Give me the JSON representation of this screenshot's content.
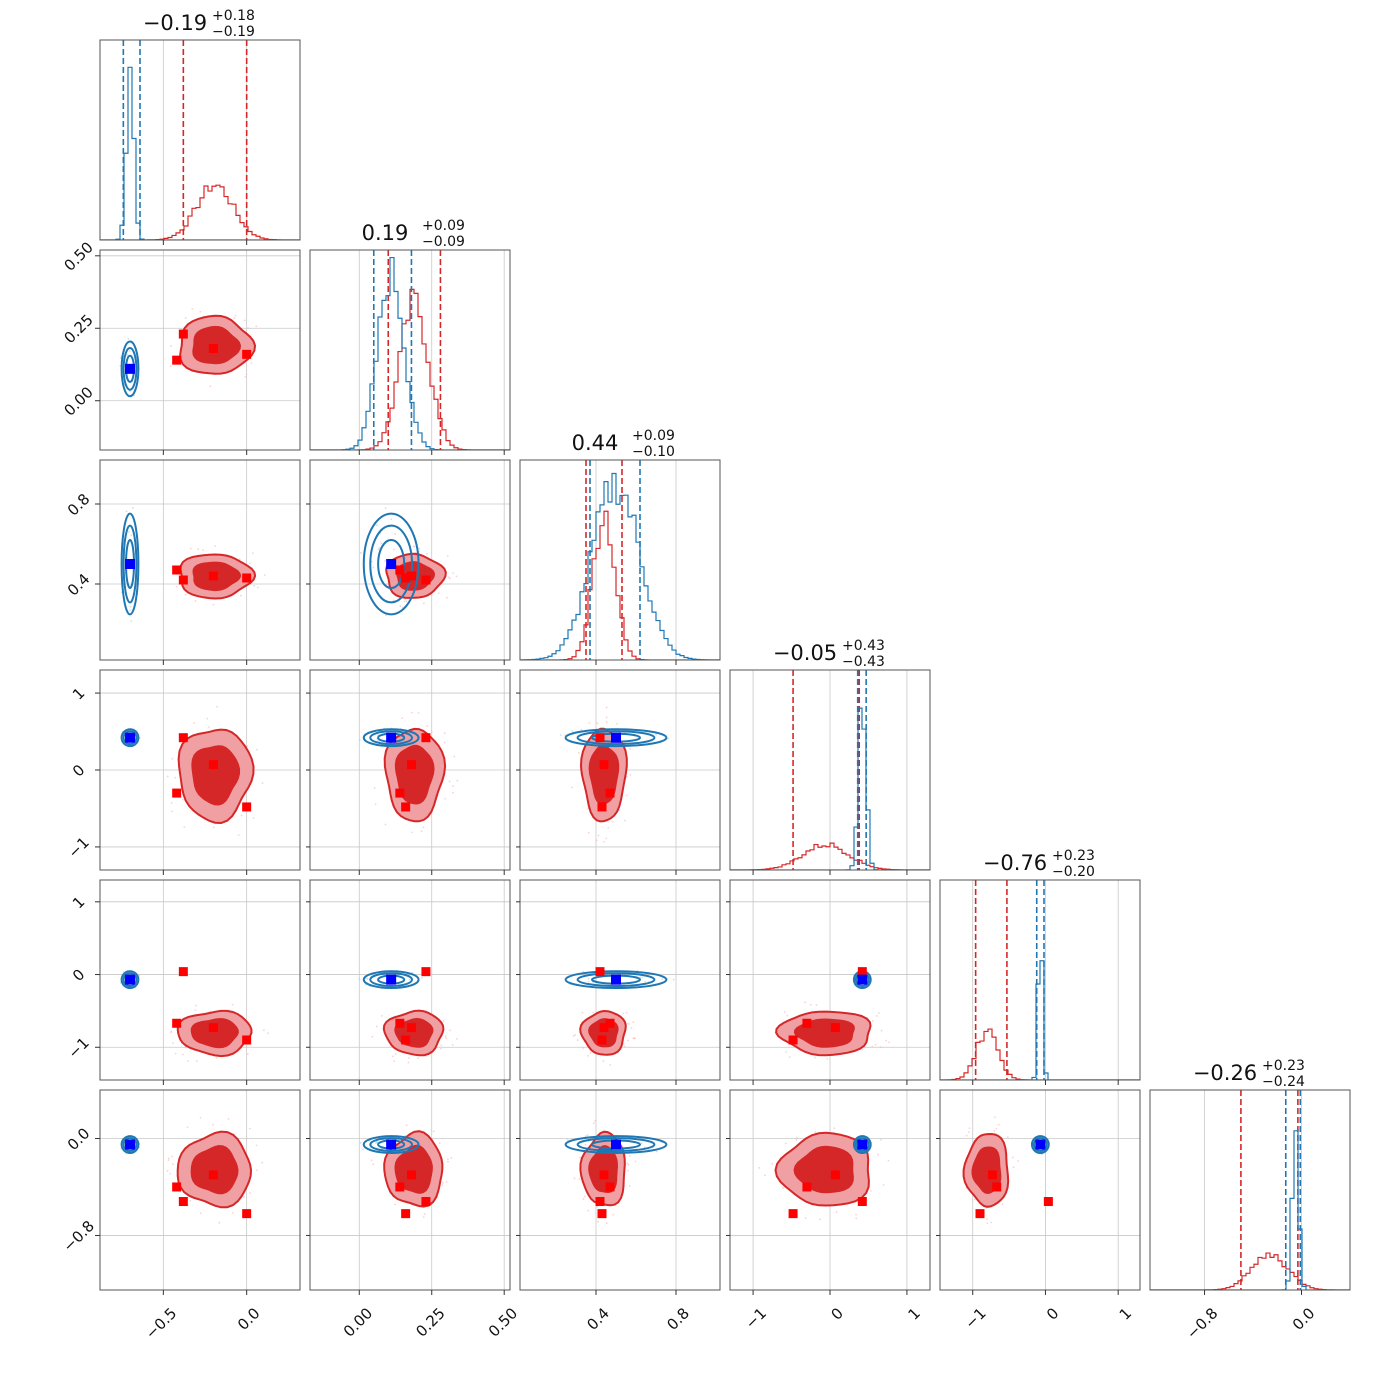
{
  "chart_data": {
    "type": "corner",
    "grid": true,
    "colors": {
      "series_a": "#d62728",
      "series_b": "#1f77b4",
      "truth_a": "#ff0000",
      "truth_b": "#0000ff",
      "contour_fill_outer": "#f0a0a2",
      "contour_fill_inner": "#d62728"
    },
    "params": [
      {
        "title_main": "−0.19",
        "title_sup": "+0.18",
        "title_sub": "−0.19",
        "range": [
          -0.88,
          0.32
        ],
        "ticks": [
          -0.5,
          0.0
        ],
        "tick_labels": [
          "−0.5",
          "0.0"
        ],
        "a": {
          "mean": -0.19,
          "sd": 0.11
        },
        "b": {
          "mean": -0.7,
          "sd": 0.022
        },
        "a_quantiles": [
          -0.38,
          0.0
        ],
        "b_quantiles": [
          -0.74,
          -0.64
        ]
      },
      {
        "title_main": "0.19",
        "title_sup": "+0.09",
        "title_sub": "−0.09",
        "range": [
          -0.17,
          0.52
        ],
        "ticks": [
          0.0,
          0.25,
          0.5
        ],
        "tick_labels": [
          "0.00",
          "0.25",
          "0.50"
        ],
        "a": {
          "mean": 0.19,
          "sd": 0.05
        },
        "b": {
          "mean": 0.11,
          "sd": 0.045
        },
        "a_quantiles": [
          0.1,
          0.28
        ],
        "b_quantiles": [
          0.05,
          0.18
        ]
      },
      {
        "title_main": "0.44",
        "title_sup": "+0.09",
        "title_sub": "−0.10",
        "range": [
          0.02,
          1.02
        ],
        "ticks": [
          0.4,
          0.8
        ],
        "tick_labels": [
          "0.4",
          "0.8"
        ],
        "a": {
          "mean": 0.44,
          "sd": 0.055
        },
        "b": {
          "mean": 0.5,
          "sd": 0.12
        },
        "a_quantiles": [
          0.35,
          0.53
        ],
        "b_quantiles": [
          0.37,
          0.62
        ]
      },
      {
        "title_main": "−0.05",
        "title_sup": "+0.43",
        "title_sub": "−0.43",
        "range": [
          -1.3,
          1.3
        ],
        "ticks": [
          -1,
          0,
          1
        ],
        "tick_labels": [
          "−1",
          "0",
          "1"
        ],
        "a": {
          "mean": -0.05,
          "sd": 0.3
        },
        "b": {
          "mean": 0.42,
          "sd": 0.05
        },
        "a_quantiles": [
          -0.48,
          0.38
        ],
        "b_quantiles": [
          0.36,
          0.47
        ]
      },
      {
        "title_main": "−0.76",
        "title_sup": "+0.23",
        "title_sub": "−0.20",
        "range": [
          -1.45,
          1.3
        ],
        "ticks": [
          -1,
          0,
          1
        ],
        "tick_labels": [
          "−1",
          "0",
          "1"
        ],
        "a": {
          "mean": -0.8,
          "sd": 0.15
        },
        "b": {
          "mean": -0.07,
          "sd": 0.03
        },
        "a_quantiles": [
          -0.96,
          -0.53
        ],
        "b_quantiles": [
          -0.12,
          -0.02
        ]
      },
      {
        "title_main": "−0.26",
        "title_sup": "+0.23",
        "title_sub": "−0.24",
        "range": [
          -1.25,
          0.4
        ],
        "ticks": [
          -0.8,
          0.0
        ],
        "tick_labels": [
          "−0.8",
          "0.0"
        ],
        "a": {
          "mean": -0.26,
          "sd": 0.15
        },
        "b": {
          "mean": -0.05,
          "sd": 0.025
        },
        "a_quantiles": [
          -0.5,
          -0.03
        ],
        "b_quantiles": [
          -0.13,
          -0.01
        ]
      }
    ],
    "truth_b": [
      -0.7,
      0.11,
      0.5,
      0.42,
      -0.07,
      -0.05
    ],
    "truth_a_points": [
      [
        -0.42,
        0.14,
        0.47,
        -0.3,
        -0.67,
        -0.4
      ],
      [
        -0.38,
        0.23,
        0.42,
        0.42,
        0.04,
        -0.52
      ],
      [
        -0.2,
        0.18,
        0.44,
        0.07,
        -0.73,
        -0.3
      ],
      [
        0.0,
        0.16,
        0.43,
        -0.48,
        -0.9,
        -0.62
      ]
    ]
  }
}
